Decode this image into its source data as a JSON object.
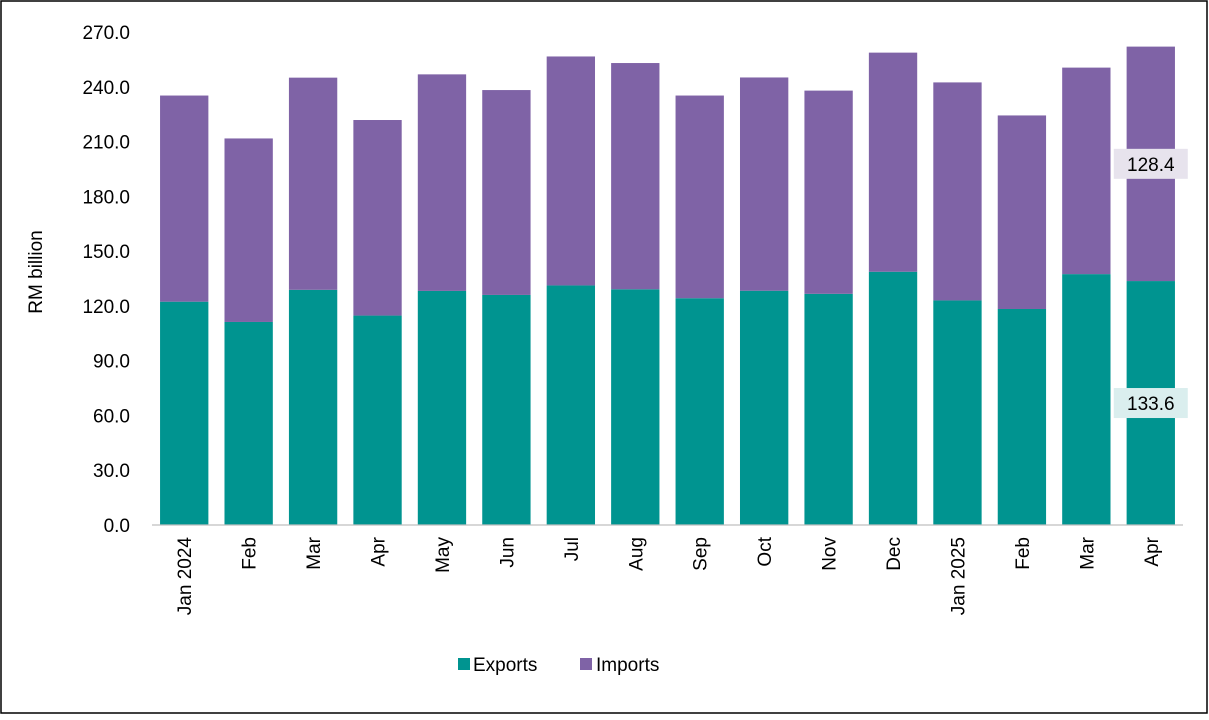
{
  "chart_data": {
    "type": "bar",
    "stacked": true,
    "ylabel": "RM billion",
    "ylim": [
      0,
      270
    ],
    "yticks": [
      "0.0",
      "30.0",
      "60.0",
      "90.0",
      "120.0",
      "150.0",
      "180.0",
      "210.0",
      "240.0",
      "270.0"
    ],
    "categories": [
      "Jan 2024",
      "Feb",
      "Mar",
      "Apr",
      "May",
      "Jun",
      "Jul",
      "Aug",
      "Sep",
      "Oct",
      "Nov",
      "Dec",
      "Jan 2025",
      "Feb",
      "Mar",
      "Apr"
    ],
    "series": [
      {
        "name": "Exports",
        "color": "#009490",
        "values": [
          122.3,
          111.2,
          128.8,
          114.7,
          128.2,
          126.0,
          131.2,
          129.1,
          124.2,
          128.3,
          126.6,
          138.7,
          123.0,
          118.3,
          137.4,
          133.6
        ]
      },
      {
        "name": "Imports",
        "color": "#7F63A6",
        "values": [
          112.9,
          100.5,
          116.2,
          107.1,
          118.6,
          112.2,
          125.4,
          123.9,
          111.0,
          116.8,
          111.3,
          120.0,
          119.4,
          106.0,
          113.1,
          128.4
        ]
      }
    ],
    "data_labels": [
      {
        "series": "Imports",
        "category_index": 15,
        "text": "128.4",
        "bg": "#E7E3ED"
      },
      {
        "series": "Exports",
        "category_index": 15,
        "text": "133.6",
        "bg": "#DAEEEE"
      }
    ],
    "legend": {
      "position": "bottom",
      "items": [
        "Exports",
        "Imports"
      ]
    },
    "grid": false
  }
}
